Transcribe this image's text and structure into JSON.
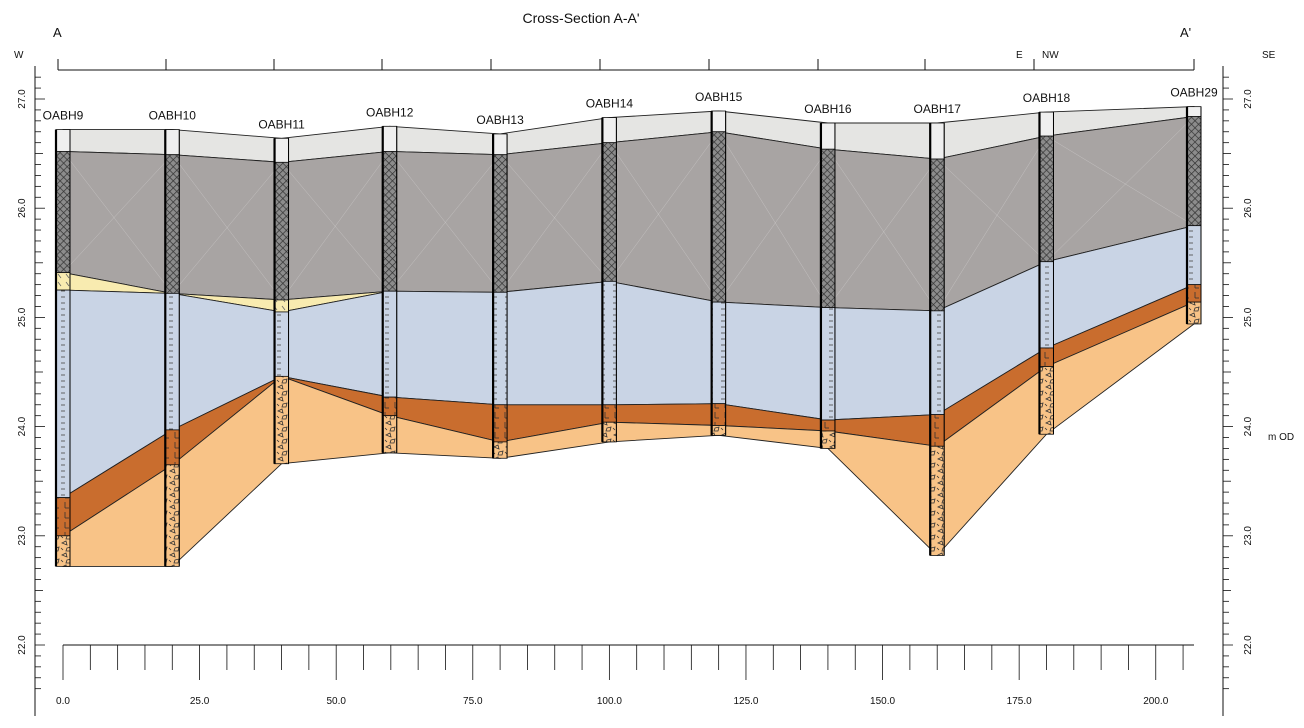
{
  "title": "Cross-Section A-A'",
  "section_start": "A",
  "section_end": "A'",
  "directions": {
    "west": "W",
    "east": "E",
    "northwest": "NW",
    "southeast": "SE"
  },
  "unit_label": "m OD",
  "colors": {
    "topsoil": "#e5e5e3",
    "made_ground": "#a8a4a3",
    "sand": "#f8ebb0",
    "clay": "#c9d4e5",
    "silt": "#c96d2e",
    "gravel": "#f8c387"
  },
  "chart_data": {
    "type": "cross-section",
    "title": "Cross-Section A-A'",
    "ylabel": "m OD",
    "ylim": [
      21.6,
      27.2
    ],
    "xlim": [
      0,
      207
    ],
    "y_ticks": [
      "22.0",
      "23.0",
      "24.0",
      "25.0",
      "26.0",
      "27.0"
    ],
    "x_ticks": [
      "0.0",
      "25.0",
      "50.0",
      "75.0",
      "100.0",
      "125.0",
      "150.0",
      "175.0",
      "200.0"
    ],
    "boreholes": [
      {
        "name": "OABH9",
        "x": 0,
        "top": 26.72,
        "made_ground_top": 26.52,
        "sand_top": 25.41,
        "clay_top": 25.25,
        "silt_top": 23.35,
        "gravel_top": 23.0,
        "base": 22.72
      },
      {
        "name": "OABH10",
        "x": 20.0,
        "top": 26.72,
        "made_ground_top": 26.49,
        "sand_top": null,
        "clay_top": 25.22,
        "silt_top": 23.97,
        "gravel_top": 23.65,
        "base": 22.72
      },
      {
        "name": "OABH11",
        "x": 40.0,
        "top": 26.64,
        "made_ground_top": 26.42,
        "sand_top": 25.16,
        "clay_top": 25.05,
        "silt_top": null,
        "gravel_top": 24.46,
        "base": 23.66
      },
      {
        "name": "OABH12",
        "x": 59.8,
        "top": 26.75,
        "made_ground_top": 26.52,
        "sand_top": null,
        "clay_top": 25.24,
        "silt_top": 24.27,
        "gravel_top": 24.1,
        "base": 23.76
      },
      {
        "name": "OABH13",
        "x": 80.0,
        "top": 26.68,
        "made_ground_top": 26.49,
        "sand_top": null,
        "clay_top": 25.23,
        "silt_top": 24.2,
        "gravel_top": 23.86,
        "base": 23.71
      },
      {
        "name": "OABH14",
        "x": 100.0,
        "top": 26.83,
        "made_ground_top": 26.6,
        "sand_top": null,
        "clay_top": 25.33,
        "silt_top": 24.2,
        "gravel_top": 24.04,
        "base": 23.86
      },
      {
        "name": "OABH15",
        "x": 120.0,
        "top": 26.89,
        "made_ground_top": 26.7,
        "sand_top": null,
        "clay_top": 25.14,
        "silt_top": 24.21,
        "gravel_top": 24.01,
        "base": 23.92
      },
      {
        "name": "OABH16",
        "x": 140.0,
        "top": 26.78,
        "made_ground_top": 26.54,
        "sand_top": null,
        "clay_top": 25.09,
        "silt_top": 24.06,
        "gravel_top": 23.96,
        "base": 23.8
      },
      {
        "name": "OABH17",
        "x": 160.0,
        "top": 26.78,
        "made_ground_top": 26.45,
        "sand_top": null,
        "clay_top": 25.06,
        "silt_top": 24.11,
        "gravel_top": 23.82,
        "base": 22.82
      },
      {
        "name": "OABH18",
        "x": 180.0,
        "top": 26.88,
        "made_ground_top": 26.66,
        "sand_top": null,
        "clay_top": 25.51,
        "silt_top": 24.72,
        "gravel_top": 24.55,
        "base": 23.93
      },
      {
        "name": "OABH29",
        "x": 207.0,
        "top": 26.93,
        "made_ground_top": 26.84,
        "sand_top": null,
        "clay_top": 25.84,
        "silt_top": 25.3,
        "gravel_top": 25.14,
        "base": 24.94
      }
    ]
  }
}
